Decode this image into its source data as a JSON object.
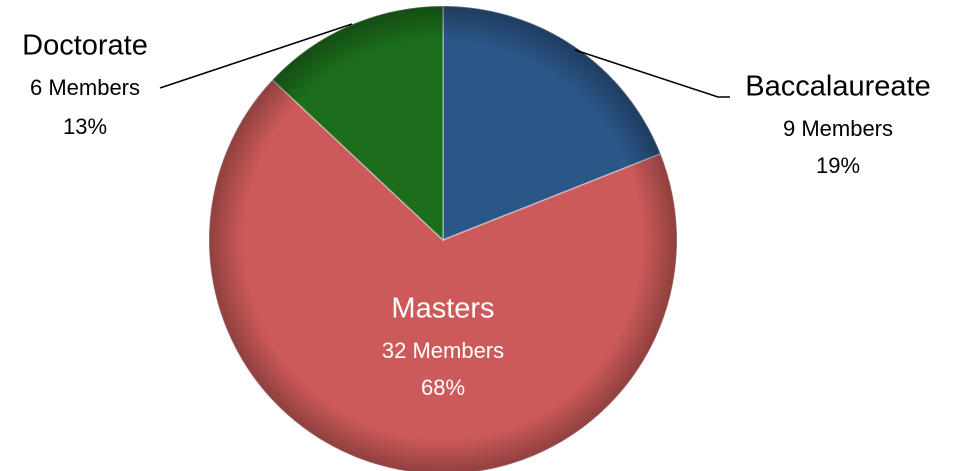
{
  "chart_data": {
    "type": "pie",
    "categories": [
      "Baccalaureate",
      "Masters",
      "Doctorate"
    ],
    "values": [
      19,
      68,
      13
    ],
    "value_labels": [
      "19%",
      "68%",
      "13%"
    ],
    "count_labels": [
      "9 Members",
      "32 Members",
      "6 Members"
    ],
    "colors": [
      "#2b5688",
      "#cd5a5a",
      "#1c6e1c"
    ]
  }
}
